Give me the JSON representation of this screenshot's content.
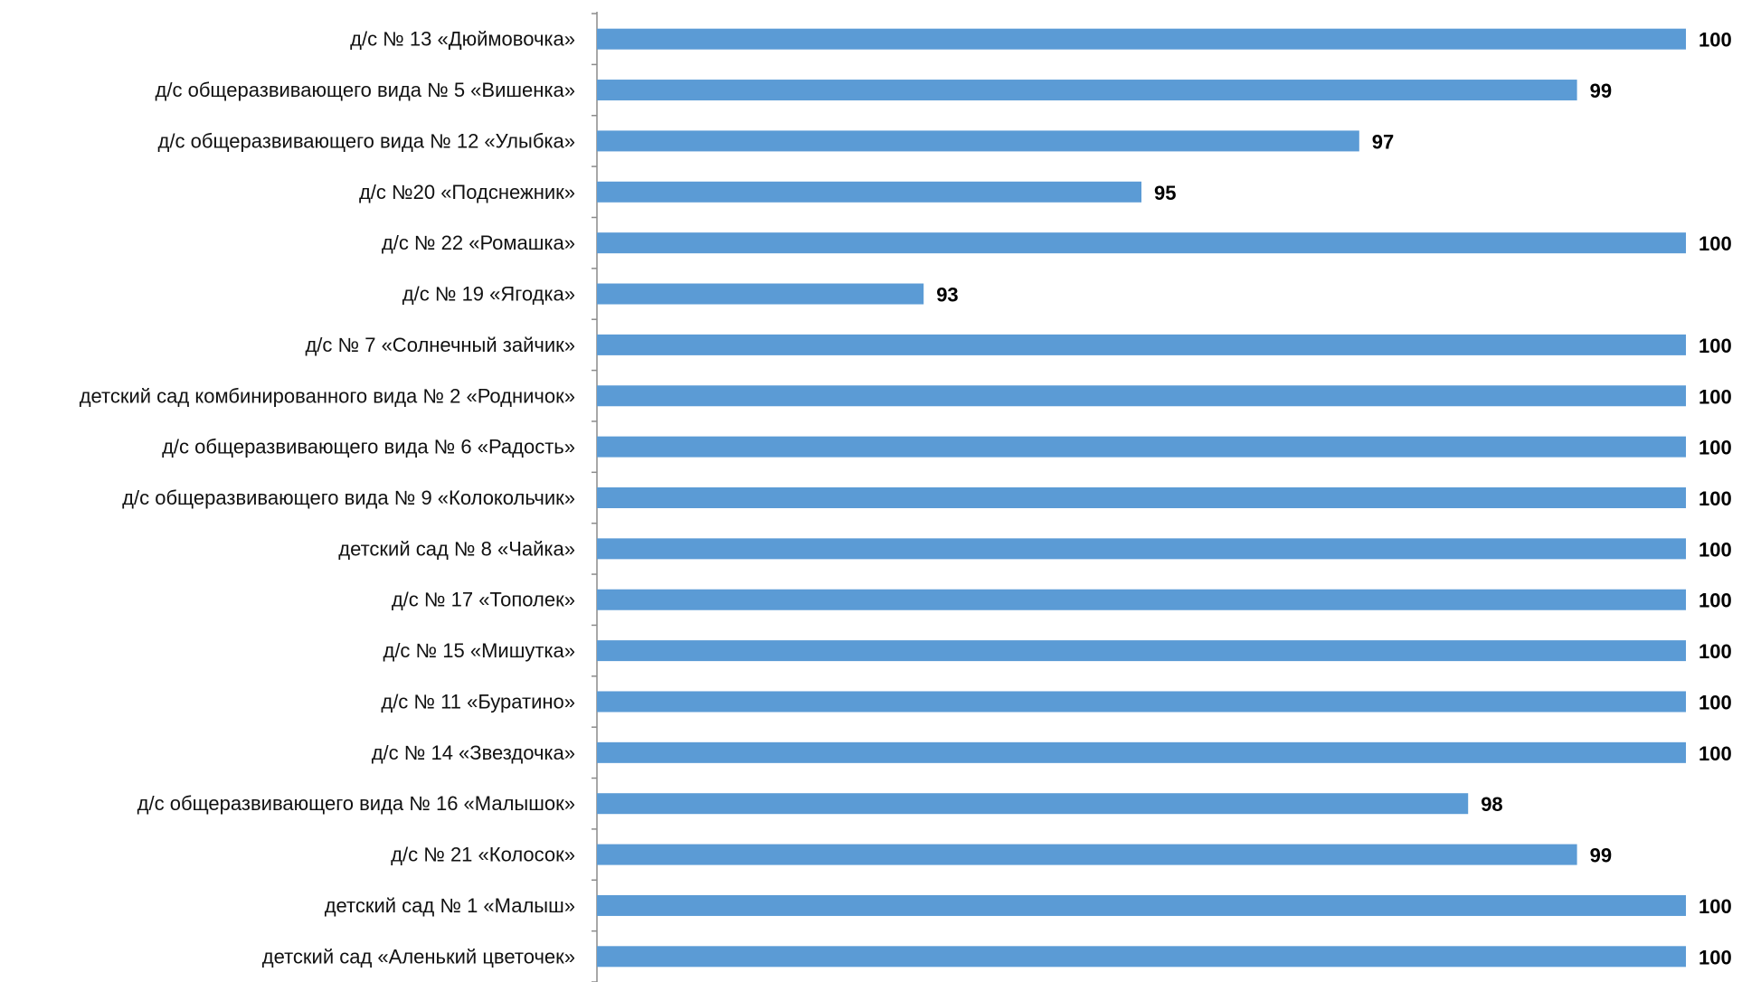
{
  "chart_data": {
    "type": "bar",
    "orientation": "horizontal",
    "title": "",
    "xlabel": "",
    "ylabel": "",
    "xlim": [
      90,
      100
    ],
    "grid": false,
    "legend": "none",
    "bar_color": "#5b9bd5",
    "categories": [
      "д/с № 13 «Дюймовочка»",
      "д/с общеразвивающего вида № 5 «Вишенка»",
      "д/с общеразвивающего вида № 12 «Улыбка»",
      "д/с №20 «Подснежник»",
      "д/с № 22 «Ромашка»",
      "д/с № 19 «Ягодка»",
      "д/с № 7 «Солнечный зайчик»",
      "детский сад комбинированного вида № 2 «Родничок»",
      "д/с общеразвивающего вида № 6 «Радость»",
      "д/с общеразвивающего вида № 9 «Колокольчик»",
      "детский сад № 8 «Чайка»",
      "д/с № 17 «Тополек»",
      "д/с № 15 «Мишутка»",
      "д/с № 11 «Буратино»",
      "д/с № 14 «Звездочка»",
      "д/с общеразвивающего вида № 16 «Малышок»",
      "д/с № 21 «Колосок»",
      "детский сад № 1 «Малыш»",
      "детский сад «Аленький цветочек»"
    ],
    "values": [
      100,
      99,
      97,
      95,
      100,
      93,
      100,
      100,
      100,
      100,
      100,
      100,
      100,
      100,
      100,
      98,
      99,
      100,
      100
    ]
  }
}
